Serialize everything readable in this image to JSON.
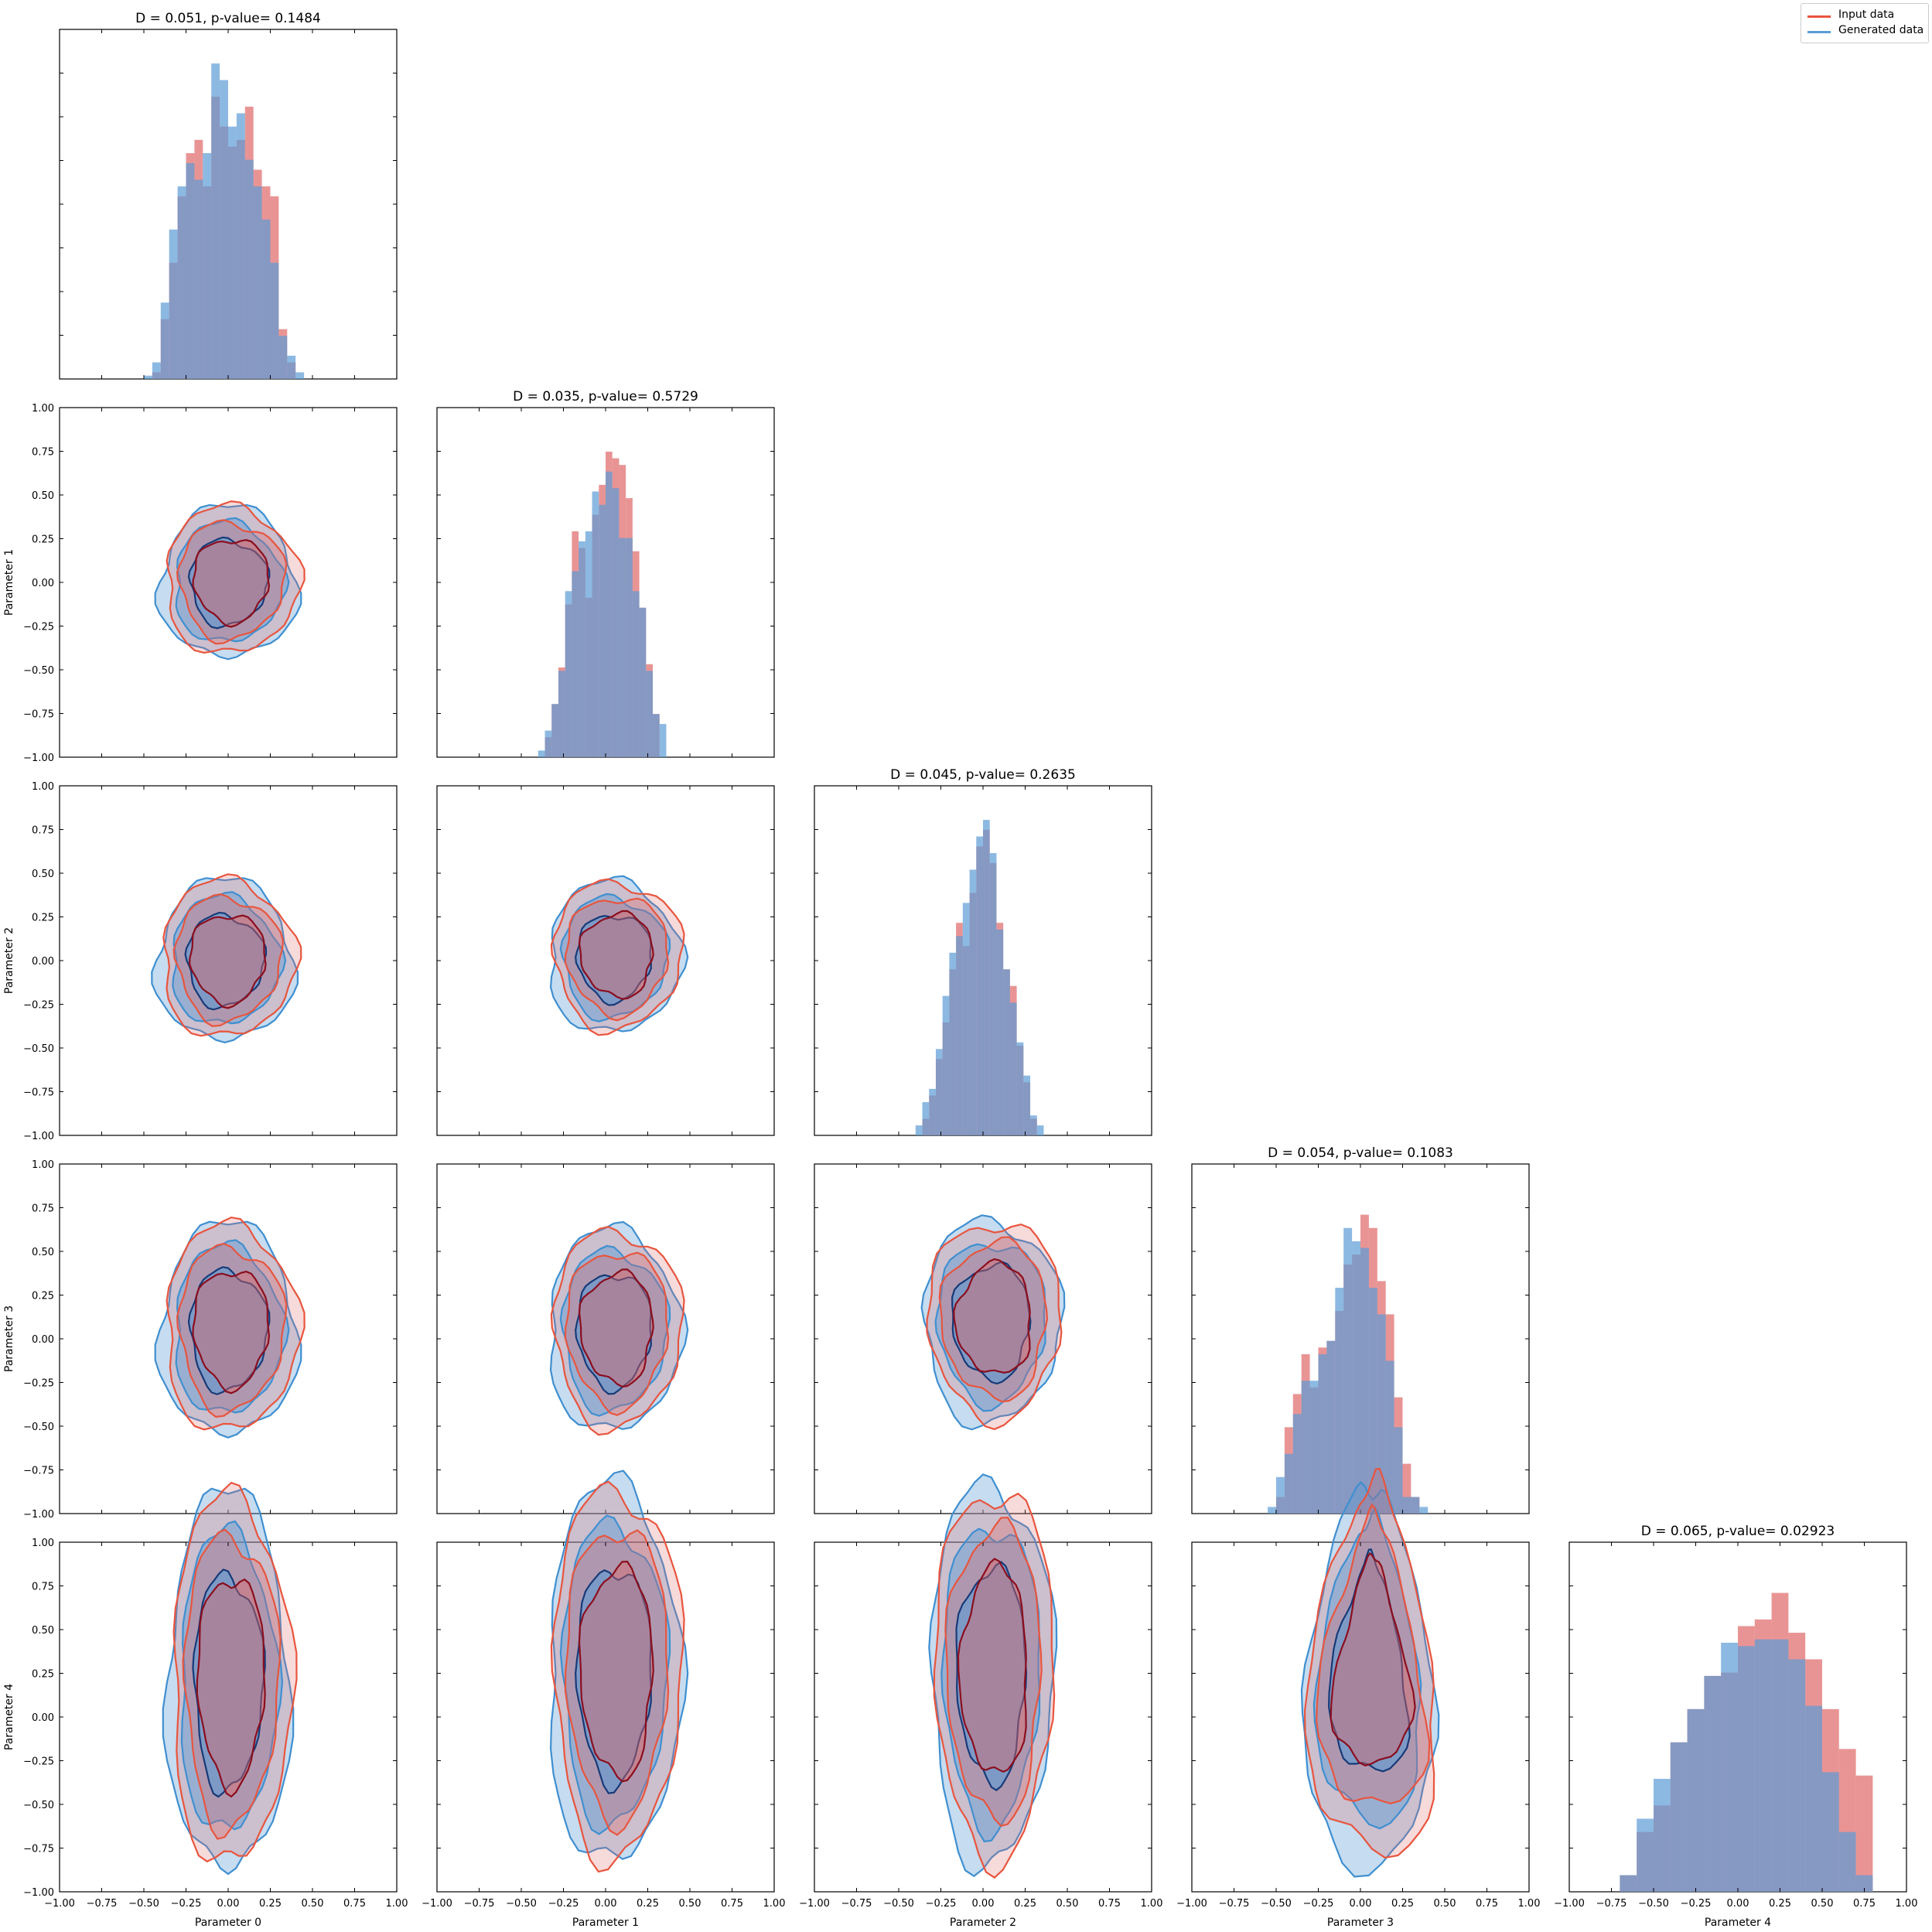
{
  "legend": {
    "placement": "top-right",
    "entries": [
      {
        "label": "Input data",
        "color": "#e8553e"
      },
      {
        "label": "Generated data",
        "color": "#5b9bd5"
      }
    ]
  },
  "colors": {
    "input_fill": "#e06666",
    "generated_fill": "#5b9bd5",
    "overlap_fill": "#7f7f9f",
    "input_line": "#e8553e",
    "input_line_dark": "#8b0e1e",
    "generated_line": "#3f8fd0",
    "generated_line_dark": "#173a78"
  },
  "chart_data": {
    "type": "corner",
    "parameters": [
      "Parameter 0",
      "Parameter 1",
      "Parameter 2",
      "Parameter 3",
      "Parameter 4"
    ],
    "xlim": [
      -1,
      1
    ],
    "ylim": [
      -1,
      1
    ],
    "tick_labels": [
      "−1.00",
      "−0.75",
      "−0.50",
      "−0.25",
      "0.00",
      "0.25",
      "0.50",
      "0.75",
      "1.00"
    ],
    "tick_values": [
      -1,
      -0.75,
      -0.5,
      -0.25,
      0,
      0.25,
      0.5,
      0.75,
      1
    ],
    "diagonal_titles": [
      "D = 0.051, p-value= 0.1484",
      "D = 0.035, p-value= 0.5729",
      "D = 0.045, p-value= 0.2635",
      "D = 0.054, p-value= 0.1083",
      "D = 0.065, p-value= 0.02923"
    ],
    "histograms": [
      {
        "bins_from": -0.5,
        "bin_width": 0.05,
        "input": [
          0,
          0.02,
          0.18,
          0.35,
          0.55,
          0.68,
          0.72,
          0.58,
          0.85,
          0.76,
          0.7,
          0.72,
          0.82,
          0.63,
          0.58,
          0.55,
          0.15,
          0.05,
          0
        ],
        "generated": [
          0.01,
          0.05,
          0.23,
          0.45,
          0.58,
          0.65,
          0.6,
          0.68,
          0.95,
          0.9,
          0.76,
          0.8,
          0.66,
          0.58,
          0.48,
          0.35,
          0.13,
          0.07,
          0.02
        ]
      },
      {
        "bins_from": -0.4,
        "bin_width": 0.04,
        "input": [
          0,
          0.06,
          0.16,
          0.27,
          0.46,
          0.68,
          0.63,
          0.48,
          0.73,
          0.82,
          0.92,
          0.9,
          0.88,
          0.78,
          0.62,
          0.45,
          0.28,
          0.13,
          0
        ],
        "generated": [
          0.02,
          0.08,
          0.16,
          0.26,
          0.5,
          0.56,
          0.65,
          0.68,
          0.8,
          0.76,
          0.86,
          0.81,
          0.66,
          0.66,
          0.5,
          0.45,
          0.26,
          0.13,
          0.1
        ]
      },
      {
        "bins_from": -0.4,
        "bin_width": 0.04,
        "input": [
          0,
          0.05,
          0.12,
          0.23,
          0.34,
          0.5,
          0.64,
          0.57,
          0.73,
          0.87,
          0.92,
          0.82,
          0.64,
          0.5,
          0.45,
          0.27,
          0.16,
          0.05,
          0
        ],
        "generated": [
          0.03,
          0.1,
          0.14,
          0.26,
          0.42,
          0.55,
          0.6,
          0.7,
          0.8,
          0.9,
          0.95,
          0.85,
          0.62,
          0.5,
          0.4,
          0.28,
          0.18,
          0.06,
          0.03
        ]
      },
      {
        "bins_from": -0.55,
        "bin_width": 0.05,
        "input": [
          0,
          0.05,
          0.26,
          0.36,
          0.48,
          0.38,
          0.5,
          0.52,
          0.61,
          0.75,
          0.78,
          0.9,
          0.86,
          0.7,
          0.6,
          0.35,
          0.15,
          0.05,
          0
        ],
        "generated": [
          0.02,
          0.11,
          0.18,
          0.3,
          0.4,
          0.4,
          0.48,
          0.52,
          0.68,
          0.86,
          0.82,
          0.8,
          0.68,
          0.6,
          0.46,
          0.26,
          0.05,
          0.05,
          0.02
        ]
      },
      {
        "bins_from": -0.7,
        "bin_width": 0.1,
        "input": [
          0.05,
          0.18,
          0.26,
          0.45,
          0.55,
          0.65,
          0.66,
          0.8,
          0.82,
          0.9,
          0.78,
          0.7,
          0.55,
          0.43,
          0.35
        ],
        "generated": [
          0.05,
          0.22,
          0.34,
          0.45,
          0.55,
          0.65,
          0.75,
          0.74,
          0.76,
          0.76,
          0.7,
          0.56,
          0.36,
          0.18,
          0.05
        ]
      }
    ],
    "contours": {
      "1,0": {
        "center": [
          0.0,
          0.0
        ],
        "rx": 0.28,
        "ry": 0.3
      },
      "2,0": {
        "center": [
          -0.02,
          0.0
        ],
        "rx": 0.28,
        "ry": 0.32
      },
      "2,1": {
        "center": [
          0.05,
          0.02
        ],
        "rx": 0.27,
        "ry": 0.3
      },
      "3,0": {
        "center": [
          0.0,
          0.05
        ],
        "rx": 0.28,
        "ry": 0.42
      },
      "3,1": {
        "center": [
          0.05,
          0.05
        ],
        "rx": 0.27,
        "ry": 0.4
      },
      "3,2": {
        "center": [
          0.05,
          0.1
        ],
        "rx": 0.28,
        "ry": 0.4
      },
      "4,0": {
        "center": [
          0.0,
          0.2
        ],
        "rx": 0.25,
        "ry": 0.75
      },
      "4,1": {
        "center": [
          0.05,
          0.25
        ],
        "rx": 0.27,
        "ry": 0.75
      },
      "4,2": {
        "center": [
          0.05,
          0.25
        ],
        "rx": 0.25,
        "ry": 0.75
      },
      "4,3": {
        "center": [
          0.05,
          0.3
        ],
        "rx": 0.35,
        "ry": 0.75,
        "shape": "v"
      }
    }
  }
}
